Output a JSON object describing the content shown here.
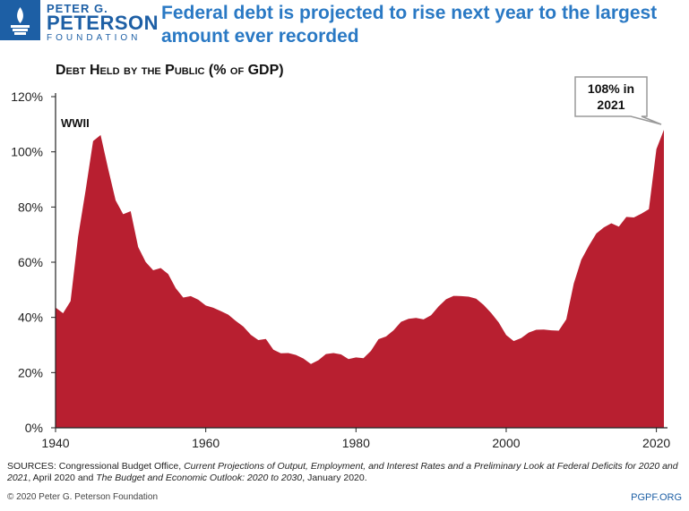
{
  "logo": {
    "line1": "PETER G.",
    "line2": "PETERSON",
    "line3": "FOUNDATION"
  },
  "headline": "Federal debt is projected to rise next year to the largest amount ever recorded",
  "colors": {
    "area": "#b81f30",
    "brand": "#1d5fa5",
    "headline": "#2a79c4"
  },
  "chart_data": {
    "type": "area",
    "title": "Debt Held by the Public (% of GDP)",
    "xlabel": "",
    "ylabel": "",
    "xlim": [
      1940,
      2021
    ],
    "ylim": [
      0,
      120
    ],
    "x_ticks": [
      1940,
      1960,
      1980,
      2000,
      2020
    ],
    "y_ticks": [
      0,
      20,
      40,
      60,
      80,
      100,
      120
    ],
    "y_tick_labels": [
      "0%",
      "20%",
      "40%",
      "60%",
      "80%",
      "100%",
      "120%"
    ],
    "grid": false,
    "series": [
      {
        "name": "",
        "x": [
          1940,
          1941,
          1942,
          1943,
          1944,
          1945,
          1946,
          1947,
          1948,
          1949,
          1950,
          1951,
          1952,
          1953,
          1954,
          1955,
          1956,
          1957,
          1958,
          1959,
          1960,
          1961,
          1962,
          1963,
          1964,
          1965,
          1966,
          1967,
          1968,
          1969,
          1970,
          1971,
          1972,
          1973,
          1974,
          1975,
          1976,
          1977,
          1978,
          1979,
          1980,
          1981,
          1982,
          1983,
          1984,
          1985,
          1986,
          1987,
          1988,
          1989,
          1990,
          1991,
          1992,
          1993,
          1994,
          1995,
          1996,
          1997,
          1998,
          1999,
          2000,
          2001,
          2002,
          2003,
          2004,
          2005,
          2006,
          2007,
          2008,
          2009,
          2010,
          2011,
          2012,
          2013,
          2014,
          2015,
          2016,
          2017,
          2018,
          2019,
          2020,
          2021
        ],
        "values": [
          43.6,
          41.5,
          45.9,
          69.2,
          86.0,
          103.9,
          106.1,
          93.9,
          82.4,
          77.4,
          78.5,
          65.5,
          60.1,
          57.1,
          57.9,
          55.7,
          50.6,
          47.2,
          47.7,
          46.4,
          44.3,
          43.5,
          42.3,
          41.0,
          38.7,
          36.7,
          33.7,
          31.8,
          32.2,
          28.3,
          27.0,
          27.1,
          26.4,
          25.1,
          23.1,
          24.5,
          26.7,
          27.1,
          26.6,
          24.9,
          25.5,
          25.2,
          27.9,
          32.1,
          33.1,
          35.3,
          38.4,
          39.5,
          39.8,
          39.3,
          40.8,
          44.0,
          46.6,
          47.8,
          47.7,
          47.5,
          46.8,
          44.5,
          41.6,
          38.2,
          33.6,
          31.4,
          32.5,
          34.5,
          35.5,
          35.6,
          35.3,
          35.2,
          39.3,
          52.3,
          60.9,
          65.9,
          70.4,
          72.6,
          74.1,
          72.9,
          76.4,
          76.2,
          77.6,
          79.2,
          101.0,
          108.0
        ]
      }
    ],
    "annotations": [
      {
        "label": "WWII",
        "x": 1945
      },
      {
        "label": "108% in 2021",
        "x": 2021,
        "value": 108
      }
    ]
  },
  "footer": {
    "sources_prefix": "SOURCES: Congressional Budget Office, ",
    "sources_title1": "Current Projections of Output, Employment, and Interest Rates and a Preliminary Look at Federal Deficits for 2020 and 2021",
    "sources_mid": ", April 2020 and ",
    "sources_title2": "The Budget and Economic Outlook: 2020 to 2030",
    "sources_suffix": ", January 2020.",
    "copyright": "© 2020 Peter G. Peterson Foundation",
    "site": "PGPF.ORG"
  }
}
